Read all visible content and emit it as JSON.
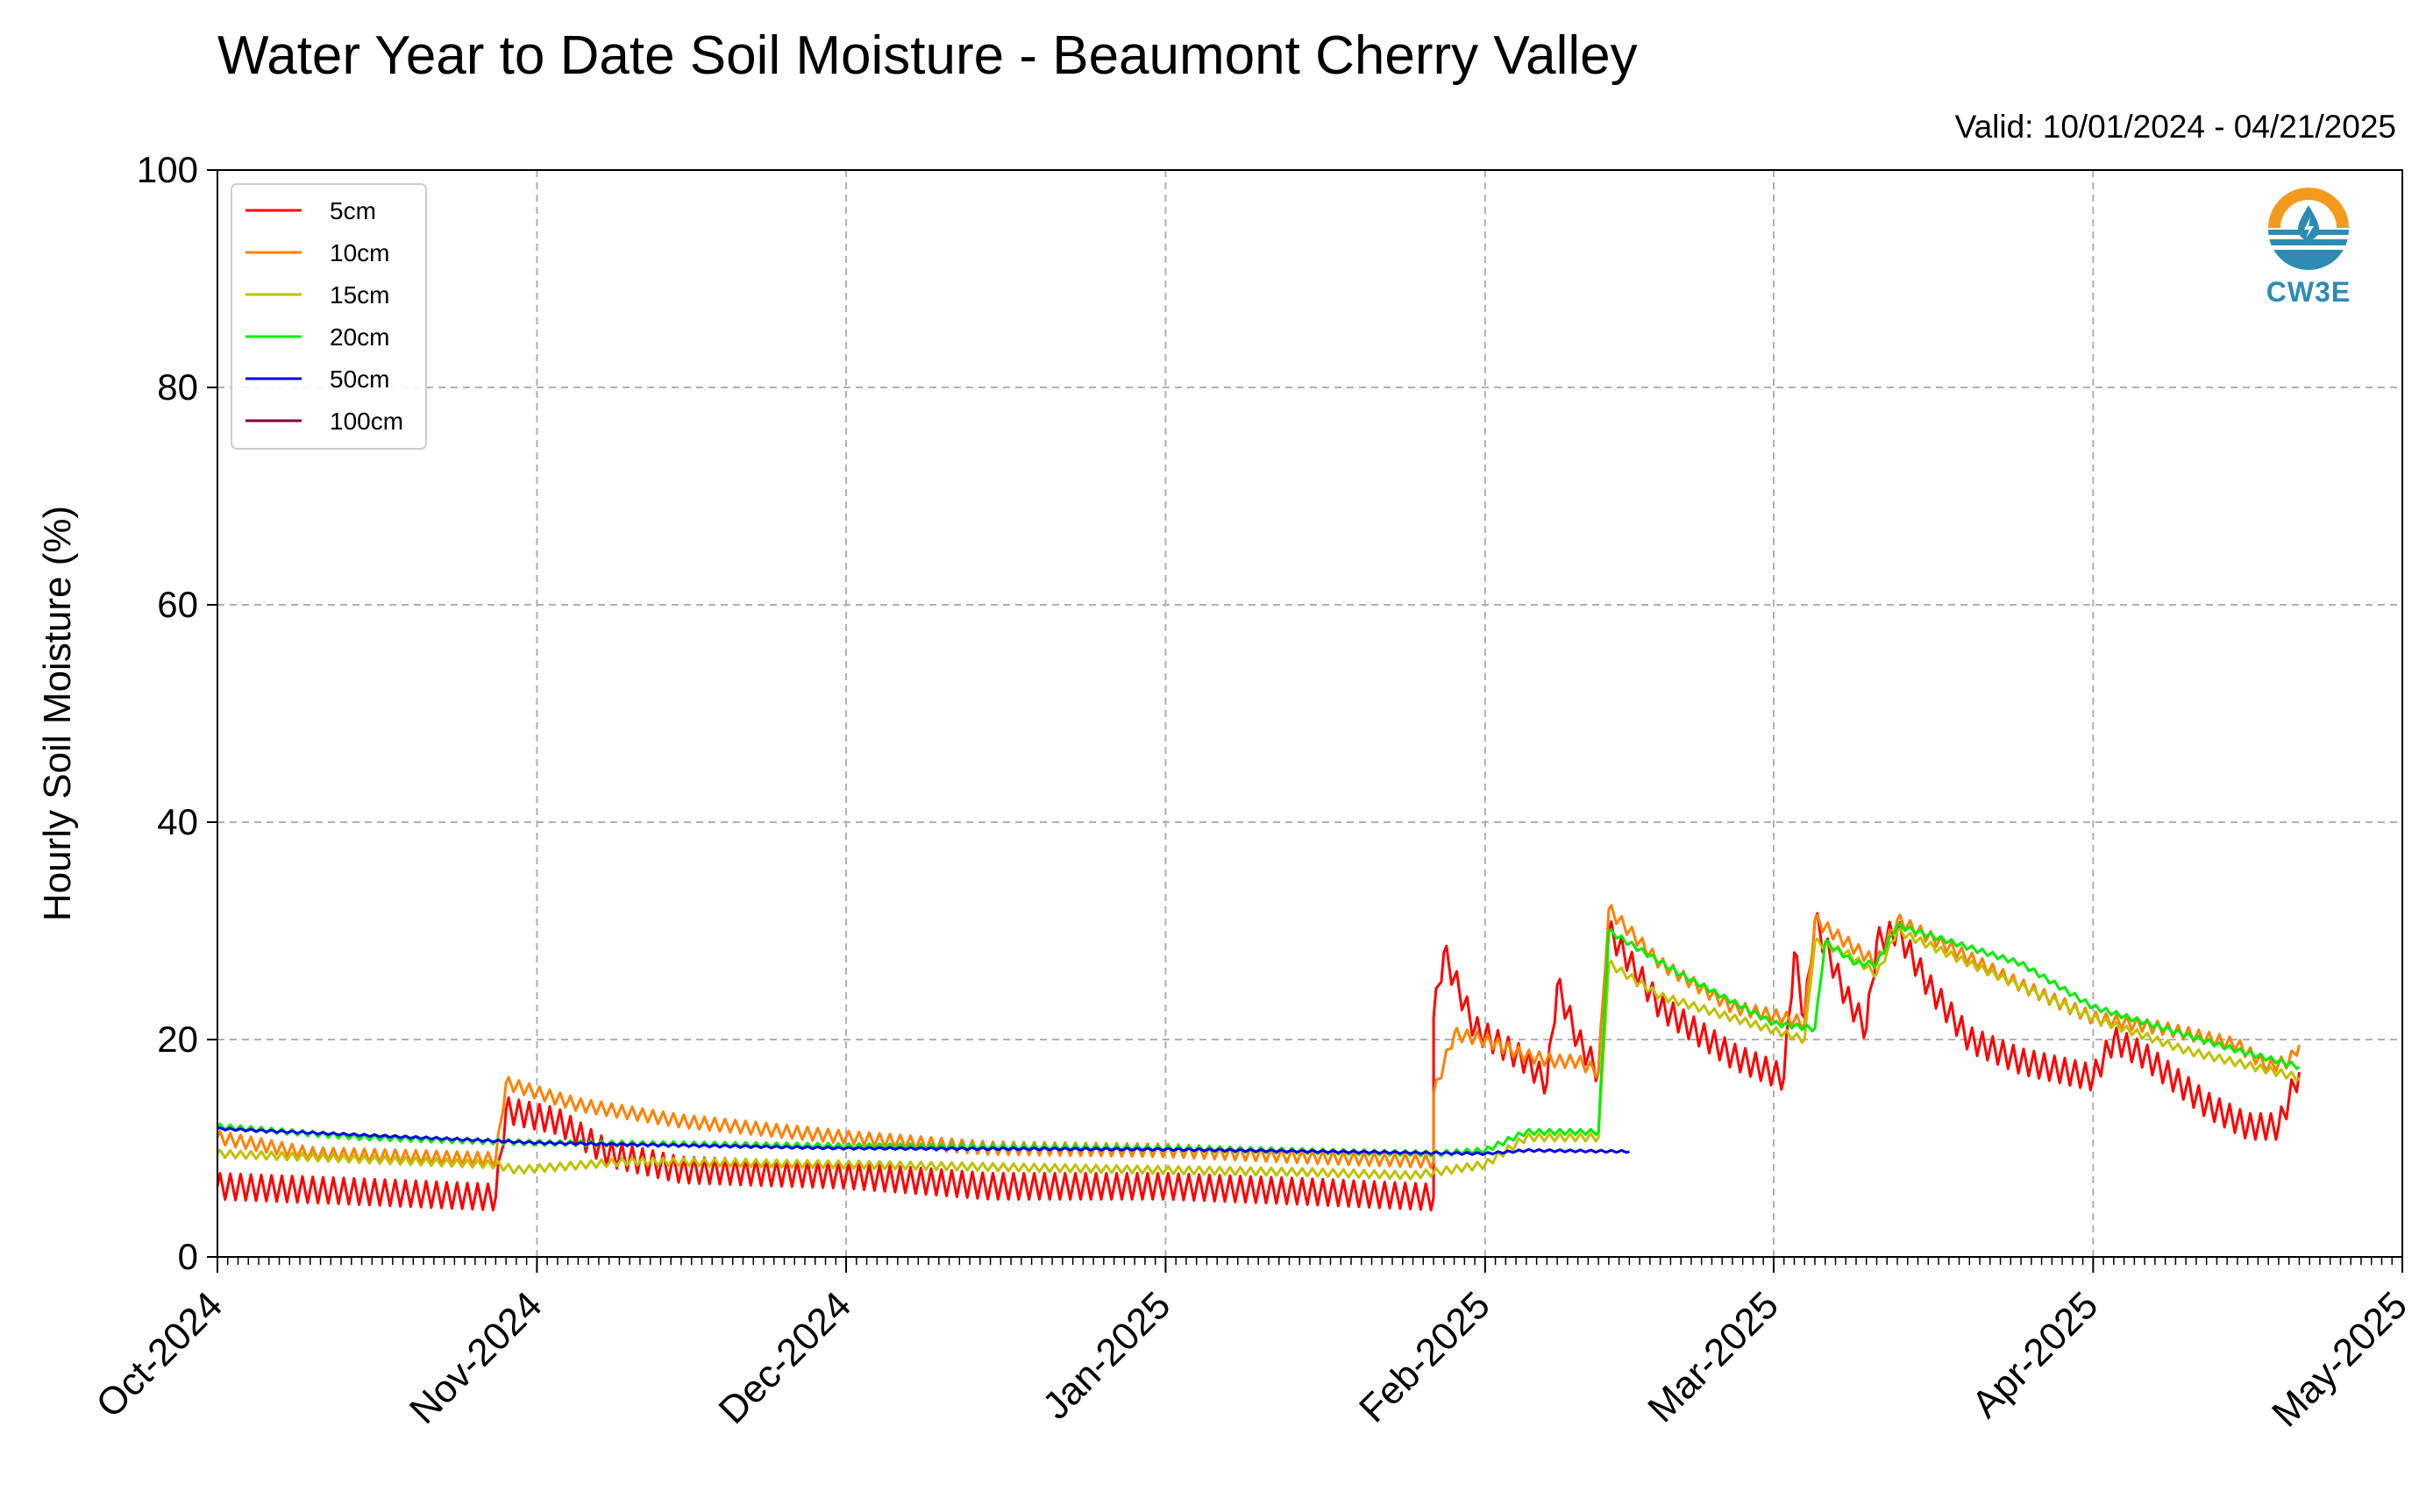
{
  "chart_data": {
    "type": "line",
    "title": "Water Year to Date Soil Moisture - Beaumont Cherry Valley",
    "subtitle": "Valid: 10/01/2024 - 04/21/2025",
    "ylabel": "Hourly Soil Moisture (%)",
    "xlabel": "",
    "xlim": [
      "2024-10-01",
      "2025-05-01"
    ],
    "ylim": [
      0,
      100
    ],
    "yticks": [
      0,
      20,
      40,
      60,
      80,
      100
    ],
    "xticks": [
      {
        "date": "2024-10-01",
        "label": "Oct-2024"
      },
      {
        "date": "2024-11-01",
        "label": "Nov-2024"
      },
      {
        "date": "2024-12-01",
        "label": "Dec-2024"
      },
      {
        "date": "2025-01-01",
        "label": "Jan-2025"
      },
      {
        "date": "2025-02-01",
        "label": "Feb-2025"
      },
      {
        "date": "2025-03-01",
        "label": "Mar-2025"
      },
      {
        "date": "2025-04-01",
        "label": "Apr-2025"
      },
      {
        "date": "2025-05-01",
        "label": "May-2025"
      }
    ],
    "grid": true,
    "legend_position": "top-left",
    "series": [
      {
        "name": "5cm",
        "color": "#ff0000",
        "diurnal": 1.2,
        "points": [
          [
            "2024-10-01",
            6.5
          ],
          [
            "2024-10-15",
            6.0
          ],
          [
            "2024-10-28",
            5.5
          ],
          [
            "2024-10-29",
            13.5
          ],
          [
            "2024-11-03",
            12.5
          ],
          [
            "2024-11-08",
            9.5
          ],
          [
            "2024-11-15",
            8.0
          ],
          [
            "2024-12-01",
            7.5
          ],
          [
            "2024-12-15",
            6.5
          ],
          [
            "2025-01-01",
            6.5
          ],
          [
            "2025-01-15",
            6.0
          ],
          [
            "2025-01-27",
            5.5
          ],
          [
            "2025-01-27",
            22.0
          ],
          [
            "2025-01-28",
            28.0
          ],
          [
            "2025-01-31",
            21.0
          ],
          [
            "2025-02-05",
            18.0
          ],
          [
            "2025-02-07",
            16.0
          ],
          [
            "2025-02-08",
            25.0
          ],
          [
            "2025-02-10",
            20.0
          ],
          [
            "2025-02-12",
            17.0
          ],
          [
            "2025-02-13",
            30.0
          ],
          [
            "2025-02-18",
            23.0
          ],
          [
            "2025-02-25",
            18.5
          ],
          [
            "2025-03-02",
            16.5
          ],
          [
            "2025-03-03",
            28.0
          ],
          [
            "2025-03-04",
            22.0
          ],
          [
            "2025-03-05",
            31.0
          ],
          [
            "2025-03-08",
            24.0
          ],
          [
            "2025-03-10",
            21.0
          ],
          [
            "2025-03-11",
            29.0
          ],
          [
            "2025-03-13",
            30.0
          ],
          [
            "2025-03-16",
            25.0
          ],
          [
            "2025-03-20",
            20.0
          ],
          [
            "2025-03-25",
            18.0
          ],
          [
            "2025-04-01",
            16.5
          ],
          [
            "2025-04-03",
            20.0
          ],
          [
            "2025-04-06",
            18.5
          ],
          [
            "2025-04-12",
            14.0
          ],
          [
            "2025-04-16",
            12.0
          ],
          [
            "2025-04-19",
            12.0
          ],
          [
            "2025-04-21",
            17.0
          ]
        ]
      },
      {
        "name": "10cm",
        "color": "#ff8000",
        "diurnal": 0.6,
        "points": [
          [
            "2024-10-01",
            11.0
          ],
          [
            "2024-10-10",
            9.5
          ],
          [
            "2024-10-28",
            9.0
          ],
          [
            "2024-10-29",
            16.0
          ],
          [
            "2024-11-05",
            14.0
          ],
          [
            "2024-11-15",
            12.5
          ],
          [
            "2024-12-01",
            11.0
          ],
          [
            "2024-12-15",
            10.0
          ],
          [
            "2025-01-01",
            9.8
          ],
          [
            "2025-01-15",
            9.2
          ],
          [
            "2025-01-27",
            8.8
          ],
          [
            "2025-01-27",
            15.0
          ],
          [
            "2025-01-29",
            20.5
          ],
          [
            "2025-02-01",
            20.0
          ],
          [
            "2025-02-05",
            18.5
          ],
          [
            "2025-02-08",
            18.0
          ],
          [
            "2025-02-10",
            18.0
          ],
          [
            "2025-02-12",
            17.0
          ],
          [
            "2025-02-13",
            32.0
          ],
          [
            "2025-02-18",
            27.0
          ],
          [
            "2025-02-25",
            23.0
          ],
          [
            "2025-03-02",
            22.0
          ],
          [
            "2025-03-04",
            21.5
          ],
          [
            "2025-03-05",
            31.0
          ],
          [
            "2025-03-08",
            29.0
          ],
          [
            "2025-03-11",
            27.0
          ],
          [
            "2025-03-13",
            31.0
          ],
          [
            "2025-03-18",
            28.5
          ],
          [
            "2025-03-25",
            25.0
          ],
          [
            "2025-04-01",
            22.0
          ],
          [
            "2025-04-08",
            21.0
          ],
          [
            "2025-04-15",
            19.5
          ],
          [
            "2025-04-18",
            17.5
          ],
          [
            "2025-04-20",
            18.0
          ],
          [
            "2025-04-21",
            19.5
          ]
        ]
      },
      {
        "name": "15cm",
        "color": "#c0c000",
        "diurnal": 0.35,
        "points": [
          [
            "2024-10-01",
            9.5
          ],
          [
            "2024-10-15",
            9.0
          ],
          [
            "2024-10-28",
            8.5
          ],
          [
            "2024-10-30",
            8.0
          ],
          [
            "2024-11-10",
            8.8
          ],
          [
            "2024-12-01",
            8.5
          ],
          [
            "2025-01-01",
            8.0
          ],
          [
            "2025-01-15",
            7.8
          ],
          [
            "2025-01-25",
            7.5
          ],
          [
            "2025-02-01",
            8.5
          ],
          [
            "2025-02-05",
            11.0
          ],
          [
            "2025-02-10",
            11.0
          ],
          [
            "2025-02-12",
            11.0
          ],
          [
            "2025-02-13",
            27.0
          ],
          [
            "2025-02-18",
            24.0
          ],
          [
            "2025-02-25",
            22.0
          ],
          [
            "2025-03-04",
            20.0
          ],
          [
            "2025-03-05",
            29.0
          ],
          [
            "2025-03-08",
            28.0
          ],
          [
            "2025-03-11",
            26.0
          ],
          [
            "2025-03-13",
            30.0
          ],
          [
            "2025-03-20",
            27.0
          ],
          [
            "2025-04-01",
            22.0
          ],
          [
            "2025-04-10",
            19.0
          ],
          [
            "2025-04-21",
            16.5
          ]
        ]
      },
      {
        "name": "20cm",
        "color": "#00ee00",
        "diurnal": 0.25,
        "points": [
          [
            "2024-10-01",
            12.0
          ],
          [
            "2024-10-15",
            11.0
          ],
          [
            "2024-11-01",
            10.5
          ],
          [
            "2024-12-01",
            10.2
          ],
          [
            "2025-01-01",
            10.0
          ],
          [
            "2025-01-27",
            9.5
          ],
          [
            "2025-02-01",
            9.8
          ],
          [
            "2025-02-05",
            11.5
          ],
          [
            "2025-02-12",
            11.5
          ],
          [
            "2025-02-13",
            30.0
          ],
          [
            "2025-02-20",
            26.0
          ],
          [
            "2025-03-01",
            21.5
          ],
          [
            "2025-03-05",
            21.0
          ],
          [
            "2025-03-06",
            29.0
          ],
          [
            "2025-03-09",
            27.0
          ],
          [
            "2025-03-11",
            27.0
          ],
          [
            "2025-03-13",
            30.5
          ],
          [
            "2025-03-25",
            27.0
          ],
          [
            "2025-04-01",
            23.0
          ],
          [
            "2025-04-15",
            19.0
          ],
          [
            "2025-04-21",
            17.5
          ]
        ]
      },
      {
        "name": "50cm",
        "color": "#0000ee",
        "diurnal": 0.1,
        "points": [
          [
            "2024-10-01",
            11.8
          ],
          [
            "2024-11-01",
            10.5
          ],
          [
            "2024-12-01",
            10.0
          ],
          [
            "2025-01-01",
            9.9
          ],
          [
            "2025-02-01",
            9.5
          ],
          [
            "2025-02-05",
            9.8
          ],
          [
            "2025-02-15",
            9.7
          ]
        ]
      },
      {
        "name": "100cm",
        "color": "#800040",
        "diurnal": 0,
        "points": []
      }
    ]
  },
  "logo": {
    "text": "CW3E"
  }
}
